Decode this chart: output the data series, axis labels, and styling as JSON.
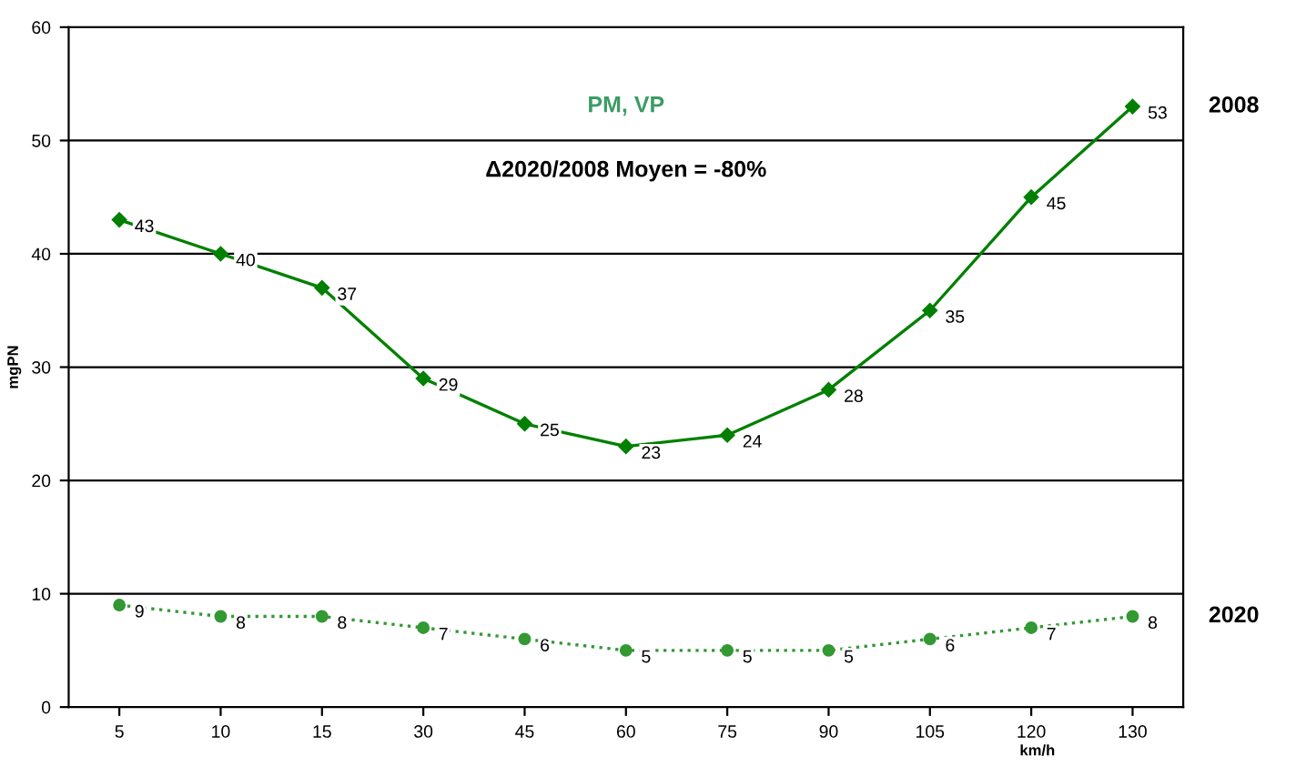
{
  "chart_data": {
    "type": "line",
    "title": "PM, VP",
    "annotations": [
      "Δ2020/2008 Moyen = -80%"
    ],
    "ylabel": "mgPN",
    "xlabel": "km/h",
    "categories": [
      "5",
      "10",
      "15",
      "30",
      "45",
      "60",
      "75",
      "90",
      "105",
      "120",
      "130"
    ],
    "series": [
      {
        "name": "2008",
        "color": "#008000",
        "marker": "diamond",
        "line_style": "solid",
        "values": [
          43,
          40,
          37,
          29,
          25,
          23,
          24,
          28,
          35,
          45,
          53
        ]
      },
      {
        "name": "2020",
        "color": "#339933",
        "marker": "circle",
        "line_style": "dotted",
        "values": [
          9,
          8,
          8,
          7,
          6,
          5,
          5,
          5,
          6,
          7,
          8
        ]
      }
    ],
    "ylim": [
      0,
      60
    ],
    "yticks": [
      0,
      10,
      20,
      30,
      40,
      50,
      60
    ],
    "grid": "y",
    "data_labels": true
  }
}
